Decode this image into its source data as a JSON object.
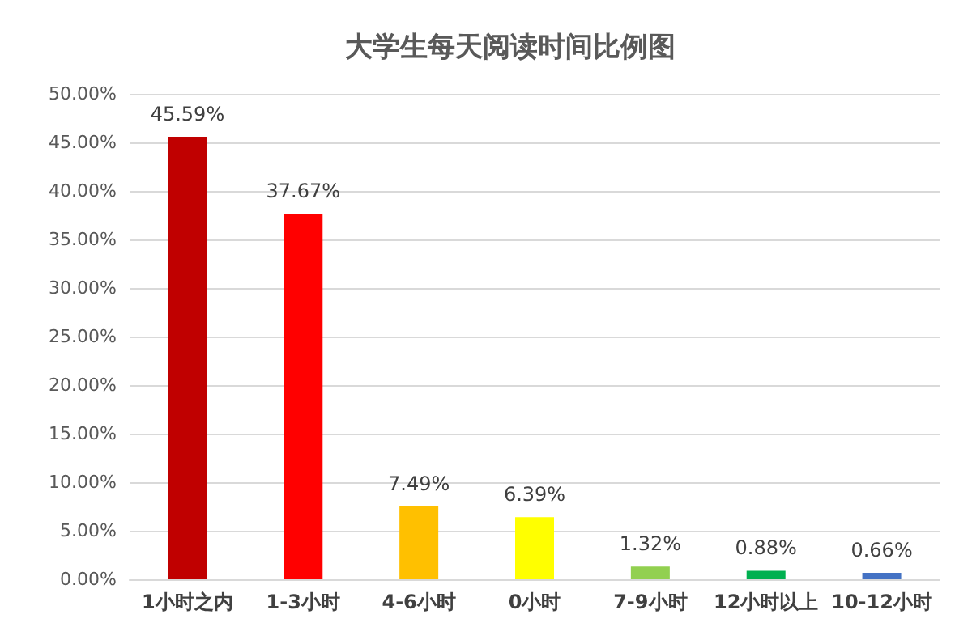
{
  "chart_data": {
    "type": "bar",
    "title": "大学生每天阅读时间比例图",
    "categories": [
      "1小时之内",
      "1-3小时",
      "4-6小时",
      "0小时",
      "7-9小时",
      "12小时以上",
      "10-12小时"
    ],
    "values": [
      45.59,
      37.67,
      7.49,
      6.39,
      1.32,
      0.88,
      0.66
    ],
    "colors": [
      "#c00000",
      "#ff0000",
      "#ffc000",
      "#ffff00",
      "#92d050",
      "#00b050",
      "#4472c4"
    ],
    "value_labels": [
      "45.59%",
      "37.67%",
      "7.49%",
      "6.39%",
      "1.32%",
      "0.88%",
      "0.66%"
    ],
    "ylim": [
      0,
      50
    ],
    "yticks": [
      {
        "value": 0,
        "label": "0.00%"
      },
      {
        "value": 5,
        "label": "5.00%"
      },
      {
        "value": 10,
        "label": "10.00%"
      },
      {
        "value": 15,
        "label": "15.00%"
      },
      {
        "value": 20,
        "label": "20.00%"
      },
      {
        "value": 25,
        "label": "25.00%"
      },
      {
        "value": 30,
        "label": "30.00%"
      },
      {
        "value": 35,
        "label": "35.00%"
      },
      {
        "value": 40,
        "label": "40.00%"
      },
      {
        "value": 45,
        "label": "45.00%"
      },
      {
        "value": 50,
        "label": "50.00%"
      }
    ],
    "grid": "y"
  }
}
